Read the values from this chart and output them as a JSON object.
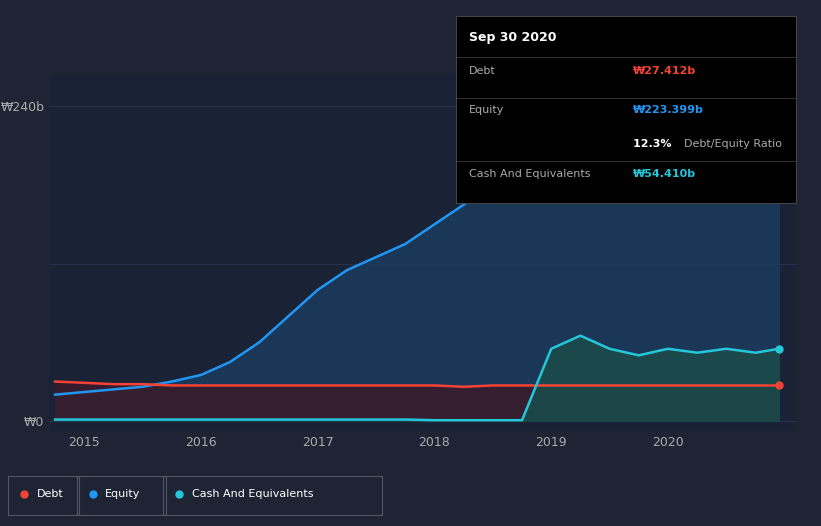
{
  "bg_color": "#1e2433",
  "plot_bg_color": "#1a2235",
  "ylabel_top": "₩240b",
  "ylabel_bottom": "₩0",
  "x_ticks": [
    2015,
    2016,
    2017,
    2018,
    2019,
    2020
  ],
  "x_min": 2014.7,
  "x_max": 2021.1,
  "y_min": -8,
  "y_max": 265,
  "equity_color": "#2196f3",
  "debt_color": "#f44336",
  "cash_color": "#26c6da",
  "equity_fill": "#1a3a5c",
  "debt_fill": "#3a1a2a",
  "cash_fill": "#1a4a4a",
  "grid_color": "#2a3550",
  "x_years": [
    2014.75,
    2015.0,
    2015.25,
    2015.5,
    2015.75,
    2016.0,
    2016.25,
    2016.5,
    2016.75,
    2017.0,
    2017.25,
    2017.5,
    2017.75,
    2018.0,
    2018.25,
    2018.5,
    2018.75,
    2019.0,
    2019.25,
    2019.5,
    2019.75,
    2020.0,
    2020.25,
    2020.5,
    2020.75,
    2020.95
  ],
  "equity_values": [
    20,
    22,
    24,
    26,
    30,
    35,
    45,
    60,
    80,
    100,
    115,
    125,
    135,
    150,
    165,
    180,
    195,
    205,
    215,
    215,
    210,
    215,
    220,
    225,
    228,
    230
  ],
  "debt_values": [
    30,
    29,
    28,
    28,
    27,
    27,
    27,
    27,
    27,
    27,
    27,
    27,
    27,
    27,
    26,
    27,
    27,
    27,
    27,
    27,
    27,
    27,
    27,
    27,
    27,
    27
  ],
  "cash_values": [
    1,
    1,
    1,
    1,
    1,
    1,
    1,
    1,
    1,
    1,
    1,
    1,
    1,
    0.5,
    0.5,
    0.5,
    0.5,
    55,
    65,
    55,
    50,
    55,
    52,
    55,
    52,
    55
  ],
  "legend_items": [
    {
      "label": "Debt",
      "color": "#f44336"
    },
    {
      "label": "Equity",
      "color": "#2196f3"
    },
    {
      "label": "Cash And Equivalents",
      "color": "#26c6da"
    }
  ],
  "tooltip_data": {
    "date": "Sep 30 2020",
    "debt_label": "Debt",
    "debt_value": "₩27.412b",
    "debt_color": "#f44336",
    "equity_label": "Equity",
    "equity_value": "₩223.399b",
    "equity_color": "#2196f3",
    "ratio_value": "12.3%",
    "ratio_label": "Debt/Equity Ratio",
    "cash_label": "Cash And Equivalents",
    "cash_value": "₩54.410b",
    "cash_color": "#26c6da"
  }
}
